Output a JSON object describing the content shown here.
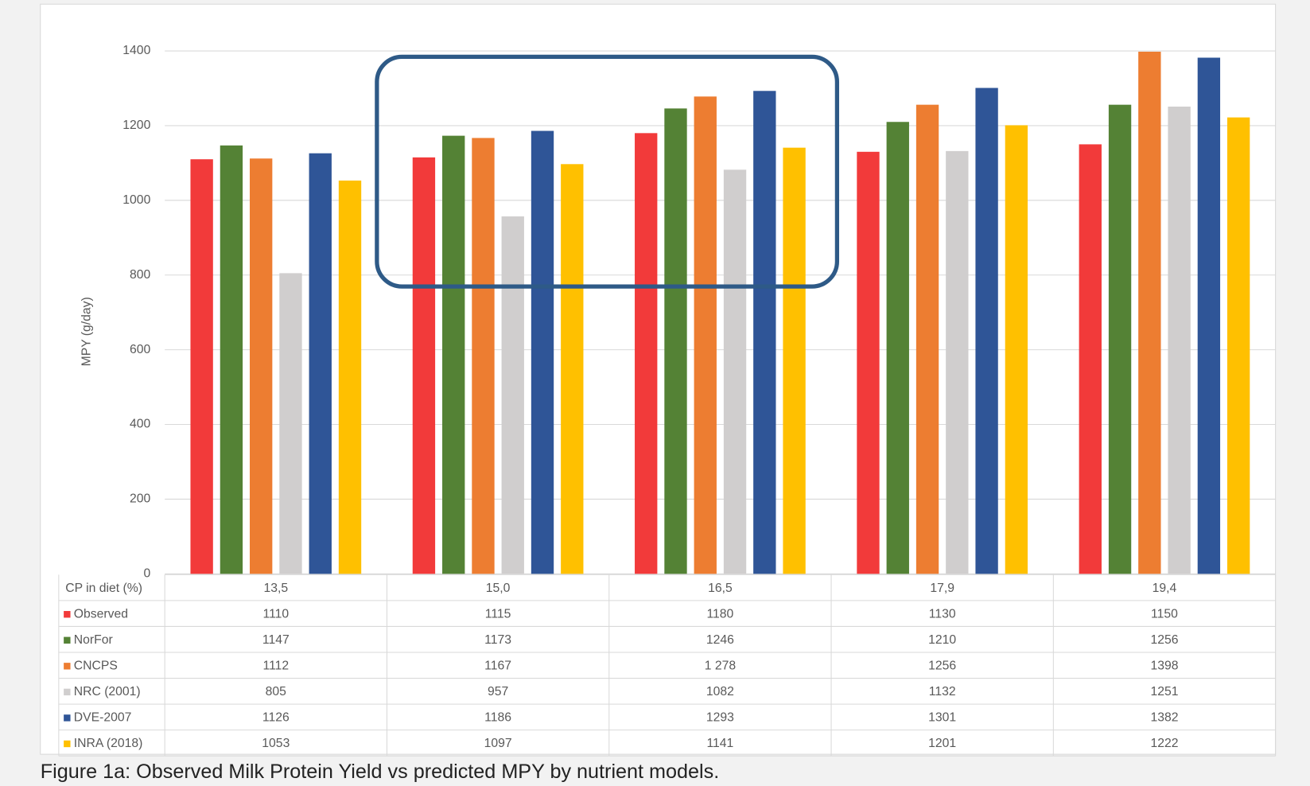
{
  "chart_data": {
    "type": "bar",
    "y_label": "MPY (g/day)",
    "table_header": "CP in diet  (%)",
    "caption": "Figure 1a: Observed Milk Protein Yield vs predicted MPY by nutrient models.",
    "categories": [
      "13,5",
      "15,0",
      "16,5",
      "17,9",
      "19,4"
    ],
    "series": [
      {
        "name": "Observed",
        "color": "#f23a3a",
        "values": [
          1110,
          1115,
          1180,
          1130,
          1150
        ]
      },
      {
        "name": "NorFor",
        "color": "#548235",
        "values": [
          1147,
          1173,
          1246,
          1210,
          1256
        ]
      },
      {
        "name": "CNCPS",
        "color": "#ed7d31",
        "values": [
          1112,
          1167,
          1278,
          1256,
          1398
        ],
        "value_labels": [
          "1112",
          "1167",
          "1 278",
          "1256",
          "1398"
        ]
      },
      {
        "name": "NRC (2001)",
        "color": "#d0cece",
        "values": [
          805,
          957,
          1082,
          1132,
          1251
        ]
      },
      {
        "name": "DVE-2007",
        "color": "#2f5597",
        "values": [
          1126,
          1186,
          1293,
          1301,
          1382
        ]
      },
      {
        "name": "INRA (2018)",
        "color": "#ffc000",
        "values": [
          1053,
          1097,
          1141,
          1201,
          1222
        ]
      }
    ],
    "ylim": [
      0,
      1400
    ],
    "yticks": [
      0,
      200,
      400,
      600,
      800,
      1000,
      1200,
      1400
    ],
    "grid": true
  }
}
